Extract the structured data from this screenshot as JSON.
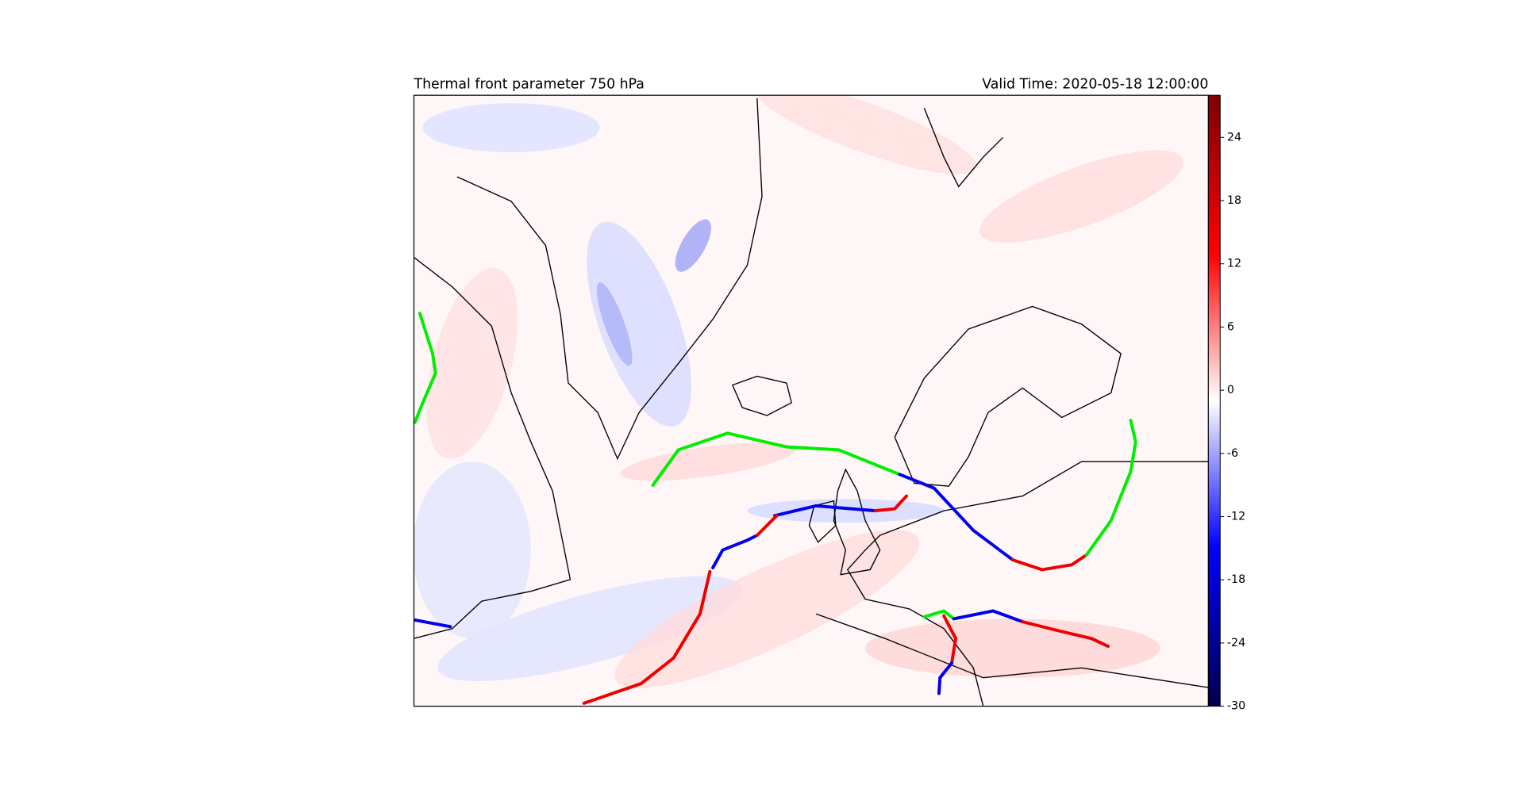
{
  "header": {
    "title": "Thermal front parameter 750 hPa",
    "valid_time": "Valid Time: 2020-05-18 12:00:00"
  },
  "colorbar": {
    "ylim": [
      -30,
      28
    ],
    "yticks": [
      24,
      18,
      12,
      6,
      0,
      -6,
      -12,
      -18,
      -24,
      -30
    ]
  }
}
